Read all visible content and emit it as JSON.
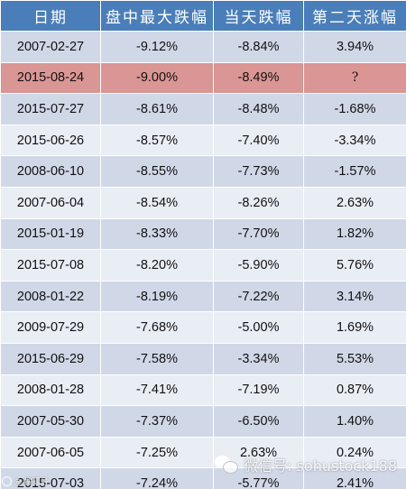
{
  "table": {
    "headers": [
      "日期",
      "盘中最大跌幅",
      "当天跌幅",
      "第二天涨幅"
    ],
    "rows": [
      {
        "date": "2007-02-27",
        "intraday_max_drop": "-9.12%",
        "day_drop": "-8.84%",
        "next_day_gain": "3.94%"
      },
      {
        "date": "2015-08-24",
        "intraday_max_drop": "-9.00%",
        "day_drop": "-8.49%",
        "next_day_gain": "?",
        "highlighted": true
      },
      {
        "date": "2015-07-27",
        "intraday_max_drop": "-8.61%",
        "day_drop": "-8.48%",
        "next_day_gain": "-1.68%"
      },
      {
        "date": "2015-06-26",
        "intraday_max_drop": "-8.57%",
        "day_drop": "-7.40%",
        "next_day_gain": "-3.34%"
      },
      {
        "date": "2008-06-10",
        "intraday_max_drop": "-8.55%",
        "day_drop": "-7.73%",
        "next_day_gain": "-1.57%"
      },
      {
        "date": "2007-06-04",
        "intraday_max_drop": "-8.54%",
        "day_drop": "-8.26%",
        "next_day_gain": "2.63%"
      },
      {
        "date": "2015-01-19",
        "intraday_max_drop": "-8.33%",
        "day_drop": "-7.70%",
        "next_day_gain": "1.82%"
      },
      {
        "date": "2015-07-08",
        "intraday_max_drop": "-8.20%",
        "day_drop": "-5.90%",
        "next_day_gain": "5.76%"
      },
      {
        "date": "2008-01-22",
        "intraday_max_drop": "-8.19%",
        "day_drop": "-7.22%",
        "next_day_gain": "3.14%"
      },
      {
        "date": "2009-07-29",
        "intraday_max_drop": "-7.68%",
        "day_drop": "-5.00%",
        "next_day_gain": "1.69%"
      },
      {
        "date": "2015-06-29",
        "intraday_max_drop": "-7.58%",
        "day_drop": "-3.34%",
        "next_day_gain": "5.53%"
      },
      {
        "date": "2008-01-28",
        "intraday_max_drop": "-7.41%",
        "day_drop": "-7.19%",
        "next_day_gain": "0.87%"
      },
      {
        "date": "2007-05-30",
        "intraday_max_drop": "-7.37%",
        "day_drop": "-6.50%",
        "next_day_gain": "1.40%"
      },
      {
        "date": "2007-06-05",
        "intraday_max_drop": "-7.25%",
        "day_drop": "2.63%",
        "next_day_gain": "0.24%"
      },
      {
        "date": "2015-07-03",
        "intraday_max_drop": "-7.24%",
        "day_drop": "-5.77%",
        "next_day_gain": "2.41%"
      }
    ]
  },
  "colors": {
    "header_bg": "#4a7ebb",
    "row_dark": "#d0d8e8",
    "row_light": "#e9edf4",
    "highlight": "#da9694"
  },
  "watermark": {
    "left_text": "@ 搜狐号",
    "right_text": "微信号: sohustock188",
    "icon": "wechat-icon"
  }
}
